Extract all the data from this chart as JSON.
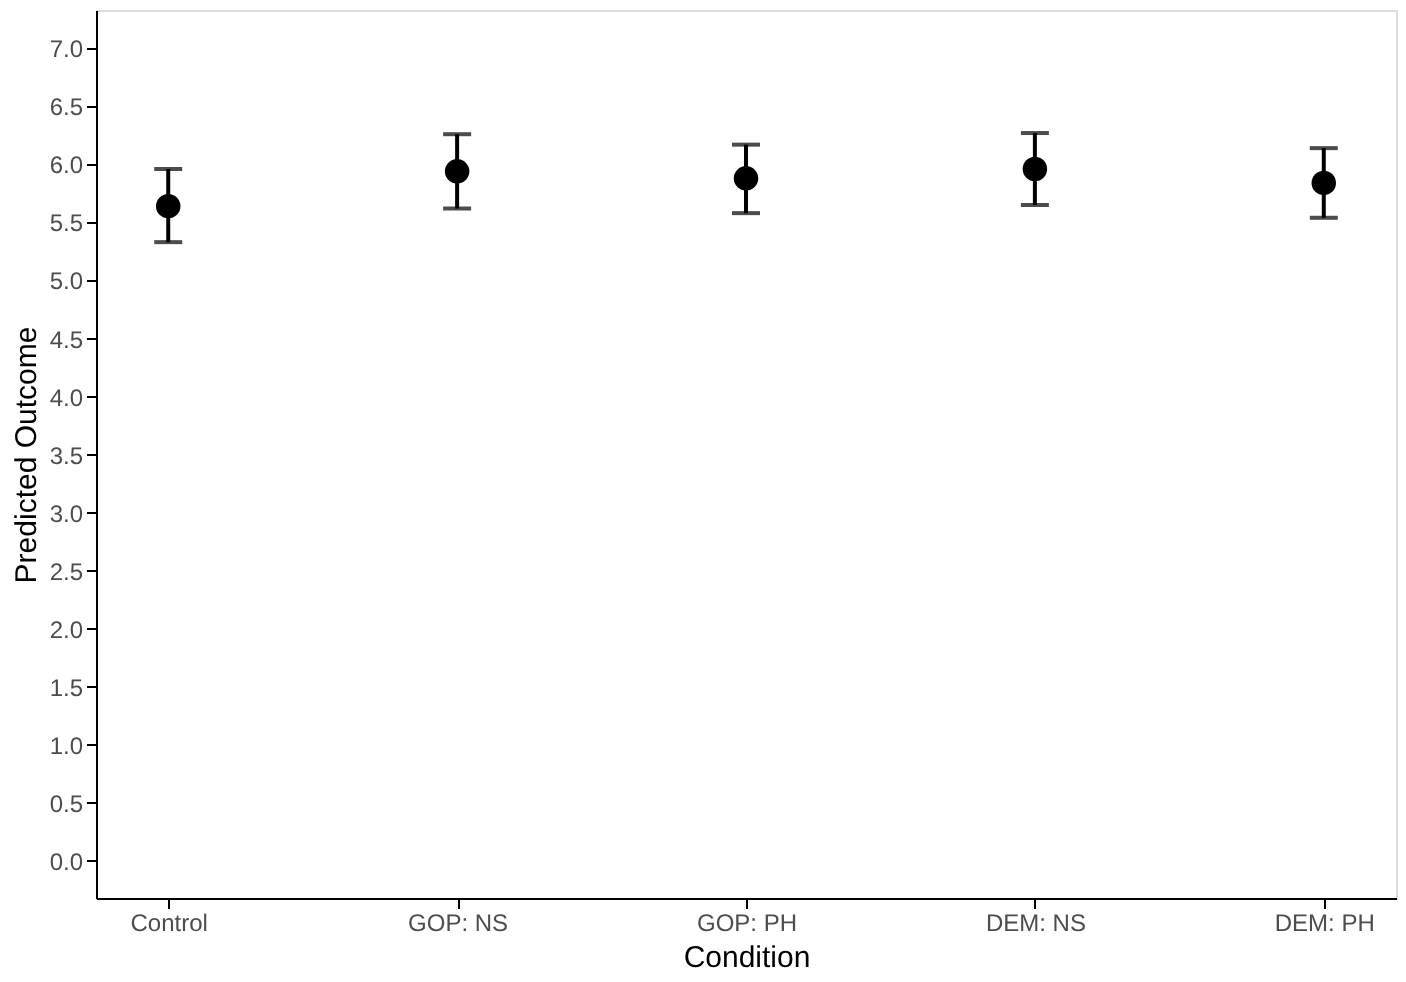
{
  "chart_data": {
    "type": "scatter",
    "xlabel": "Condition",
    "ylabel": "Predicted Outcome",
    "categories": [
      "Control",
      "GOP: NS",
      "GOP: PH",
      "DEM: NS",
      "DEM: PH"
    ],
    "series": [
      {
        "color": "#000000",
        "values": [
          5.64,
          5.94,
          5.88,
          5.96,
          5.84
        ],
        "errors": [
          [
            5.33,
            5.96
          ],
          [
            5.62,
            6.26
          ],
          [
            5.58,
            6.17
          ],
          [
            5.65,
            6.27
          ],
          [
            5.54,
            6.14
          ]
        ]
      }
    ],
    "ylim": [
      -0.32,
      7.33
    ],
    "yticks": [
      {
        "value": 0,
        "label": "0.0"
      },
      {
        "value": 0.5,
        "label": "0.5"
      },
      {
        "value": 1,
        "label": "1.0"
      },
      {
        "value": 1.5,
        "label": "1.5"
      },
      {
        "value": 2,
        "label": "2.0"
      },
      {
        "value": 2.5,
        "label": "2.5"
      },
      {
        "value": 3,
        "label": "3.0"
      },
      {
        "value": 3.5,
        "label": "3.5"
      },
      {
        "value": 4,
        "label": "4.0"
      },
      {
        "value": 4.5,
        "label": "4.5"
      },
      {
        "value": 5,
        "label": "5.0"
      },
      {
        "value": 5.5,
        "label": "5.5"
      },
      {
        "value": 6,
        "label": "6.0"
      },
      {
        "value": 6.5,
        "label": "6.5"
      },
      {
        "value": 7,
        "label": "7.0"
      }
    ],
    "grid": false,
    "marker": "circle"
  }
}
